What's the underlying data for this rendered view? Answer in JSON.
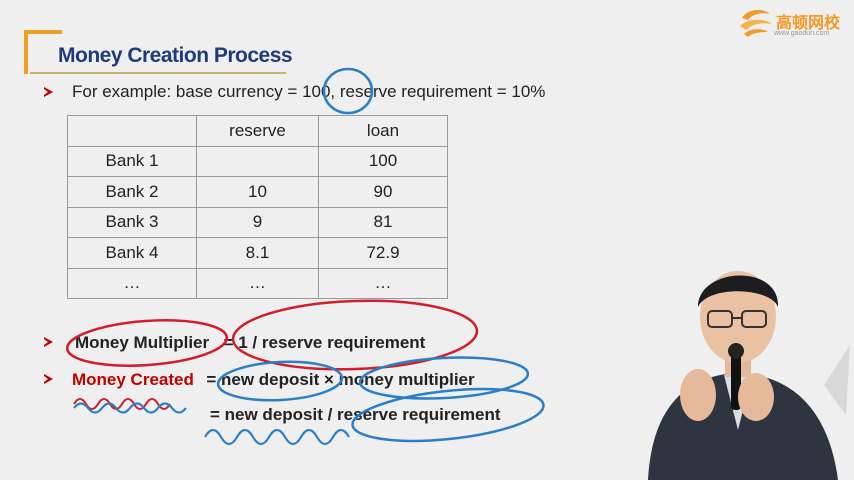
{
  "slide": {
    "title": "Money Creation Process",
    "logo": {
      "name": "高顿网校",
      "url": "www.gaodun.com"
    },
    "example_line": "For example: base currency = 100, reserve requirement = 10%",
    "table": {
      "headers": [
        "",
        "reserve",
        "loan"
      ],
      "rows": [
        [
          "Bank 1",
          "",
          "100"
        ],
        [
          "Bank 2",
          "10",
          "90"
        ],
        [
          "Bank 3",
          "9",
          "81"
        ],
        [
          "Bank 4",
          "8.1",
          "72.9"
        ],
        [
          "…",
          "…",
          "…"
        ]
      ]
    },
    "multiplier": {
      "label": "Money Multiplier",
      "rhs": "= 1 / reserve requirement"
    },
    "created": {
      "label": "Money Created",
      "eq1": "= new deposit × money multiplier",
      "eq2": "= new deposit / reserve requirement"
    }
  },
  "colors": {
    "title": "#1f3b7a",
    "accent_red": "#c00000",
    "annotation_red": "#d21e2a",
    "annotation_blue": "#2a7fc8",
    "logo_orange": "#f09a2a"
  }
}
